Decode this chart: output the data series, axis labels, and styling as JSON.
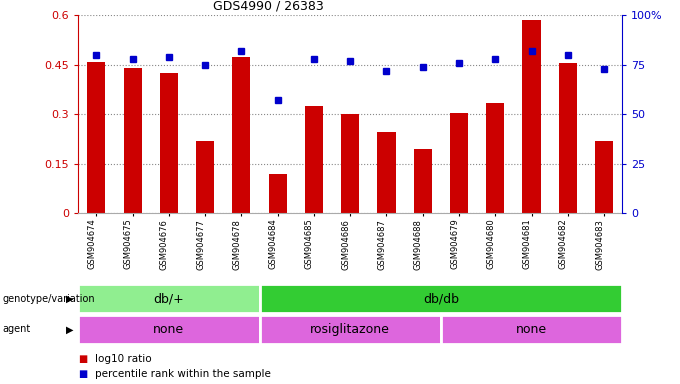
{
  "title": "GDS4990 / 26383",
  "samples": [
    "GSM904674",
    "GSM904675",
    "GSM904676",
    "GSM904677",
    "GSM904678",
    "GSM904684",
    "GSM904685",
    "GSM904686",
    "GSM904687",
    "GSM904688",
    "GSM904679",
    "GSM904680",
    "GSM904681",
    "GSM904682",
    "GSM904683"
  ],
  "log10_ratio": [
    0.46,
    0.44,
    0.425,
    0.22,
    0.475,
    0.12,
    0.325,
    0.3,
    0.245,
    0.195,
    0.305,
    0.335,
    0.585,
    0.455,
    0.22
  ],
  "percentile_rank": [
    80,
    78,
    79,
    75,
    82,
    57,
    78,
    77,
    72,
    74,
    76,
    78,
    82,
    80,
    73
  ],
  "bar_color": "#cc0000",
  "dot_color": "#0000cc",
  "genotype_groups": [
    {
      "label": "db/+",
      "start": 0,
      "end": 5,
      "color": "#90ee90"
    },
    {
      "label": "db/db",
      "start": 5,
      "end": 15,
      "color": "#33cc33"
    }
  ],
  "agent_groups": [
    {
      "label": "none",
      "start": 0,
      "end": 5,
      "color": "#dd66dd"
    },
    {
      "label": "rosiglitazone",
      "start": 5,
      "end": 10,
      "color": "#dd66dd"
    },
    {
      "label": "none",
      "start": 10,
      "end": 15,
      "color": "#dd66dd"
    }
  ],
  "ylim_left": [
    0,
    0.6
  ],
  "ylim_right": [
    0,
    100
  ],
  "yticks_left": [
    0,
    0.15,
    0.3,
    0.45,
    0.6
  ],
  "yticks_right": [
    0,
    25,
    50,
    75,
    100
  ],
  "ytick_labels_left": [
    "0",
    "0.15",
    "0.3",
    "0.45",
    "0.6"
  ],
  "ytick_labels_right": [
    "0",
    "25",
    "50",
    "75",
    "100%"
  ],
  "legend_items": [
    {
      "label": "log10 ratio",
      "color": "#cc0000"
    },
    {
      "label": "percentile rank within the sample",
      "color": "#0000cc"
    }
  ],
  "bar_color_left_axis": "#cc0000",
  "dot_color_right_axis": "#0000cc",
  "background_color": "#ffffff",
  "bar_width": 0.5,
  "dot_size": 5,
  "separator_color": "#cccccc"
}
